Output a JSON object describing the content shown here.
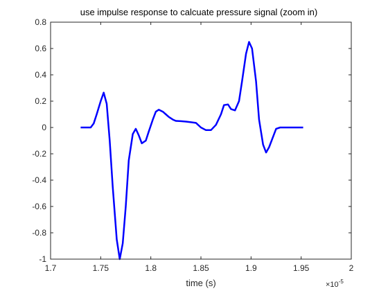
{
  "chart_data": {
    "type": "line",
    "title": "use impulse response to calcuate pressure signal (zoom in)",
    "xlabel": "time (s)",
    "ylabel": "",
    "x_multiplier_label": "×10",
    "x_multiplier_exponent": "-5",
    "xlim": [
      1.7,
      2.0
    ],
    "ylim": [
      -1,
      0.8
    ],
    "x_ticks": [
      1.7,
      1.75,
      1.8,
      1.85,
      1.9,
      1.95,
      2.0
    ],
    "x_tick_labels": [
      "1.7",
      "1.75",
      "1.8",
      "1.85",
      "1.9",
      "1.95",
      "2"
    ],
    "y_ticks": [
      -1,
      -0.8,
      -0.6,
      -0.4,
      -0.2,
      0,
      0.2,
      0.4,
      0.6,
      0.8
    ],
    "y_tick_labels": [
      "-1",
      "-0.8",
      "-0.6",
      "-0.4",
      "-0.2",
      "0",
      "0.2",
      "0.4",
      "0.6",
      "0.8"
    ],
    "grid": false,
    "line_color": "#0000FF",
    "series": [
      {
        "x": [
          1.73,
          1.74,
          1.743,
          1.746,
          1.75,
          1.753,
          1.756,
          1.759,
          1.762,
          1.766,
          1.769,
          1.772,
          1.775,
          1.778,
          1.782,
          1.785,
          1.788,
          1.791,
          1.795,
          1.798,
          1.802,
          1.805,
          1.808,
          1.812,
          1.815,
          1.818,
          1.822,
          1.825,
          1.83,
          1.835,
          1.84,
          1.845,
          1.85,
          1.855,
          1.86,
          1.865,
          1.87,
          1.873,
          1.877,
          1.88,
          1.884,
          1.888,
          1.891,
          1.895,
          1.898,
          1.901,
          1.905,
          1.908,
          1.912,
          1.915,
          1.918,
          1.922,
          1.925,
          1.929,
          1.932,
          1.935,
          1.939,
          1.942,
          1.945,
          1.948,
          1.952
        ],
        "y": [
          0.0,
          0.0,
          0.03,
          0.1,
          0.2,
          0.265,
          0.18,
          -0.1,
          -0.45,
          -0.85,
          -1.0,
          -0.88,
          -0.6,
          -0.25,
          -0.05,
          -0.01,
          -0.06,
          -0.12,
          -0.1,
          -0.03,
          0.06,
          0.12,
          0.135,
          0.12,
          0.1,
          0.08,
          0.06,
          0.05,
          0.048,
          0.045,
          0.04,
          0.035,
          0.0,
          -0.02,
          -0.02,
          0.02,
          0.1,
          0.17,
          0.175,
          0.14,
          0.13,
          0.2,
          0.35,
          0.56,
          0.65,
          0.6,
          0.35,
          0.06,
          -0.13,
          -0.19,
          -0.15,
          -0.07,
          -0.01,
          0.0,
          0.0,
          0.0,
          0.0,
          0.0,
          0.0,
          0.0,
          0.0
        ]
      }
    ]
  }
}
